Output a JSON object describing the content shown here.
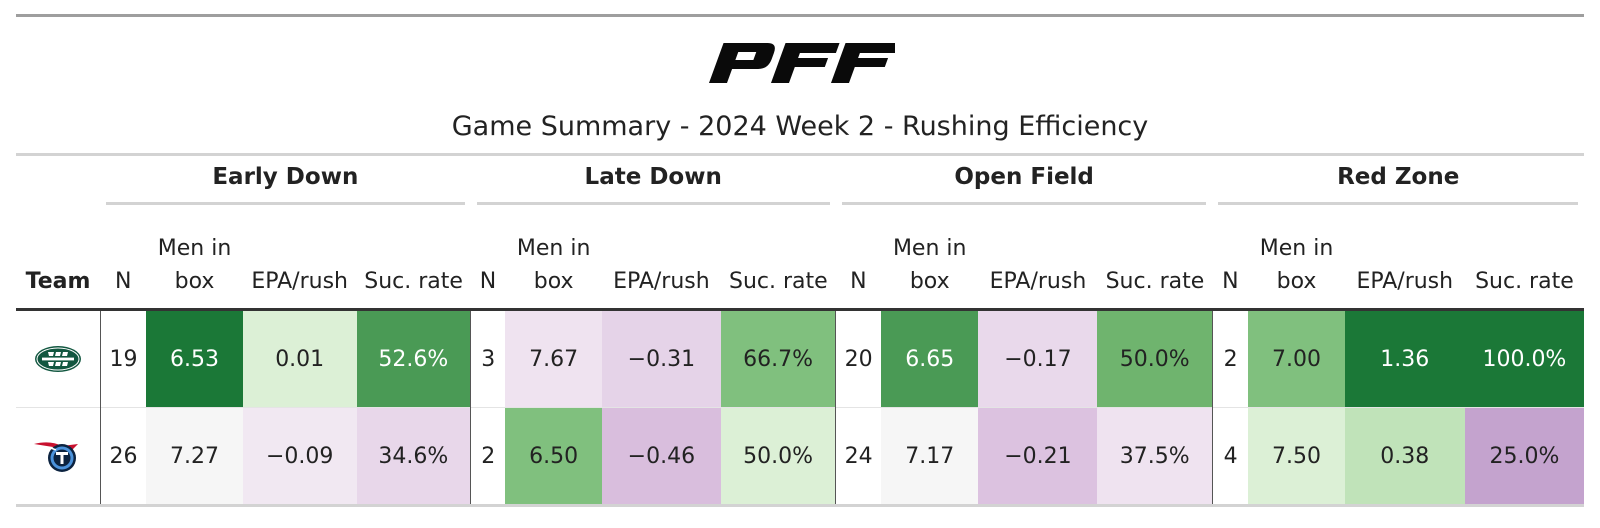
{
  "header": {
    "logo_text": "PFF",
    "title": "Game Summary - 2024 Week 2 - Rushing Efficiency"
  },
  "chart_data": {
    "type": "table",
    "title": "Game Summary - 2024 Week 2 - Rushing Efficiency",
    "team_header": "Team",
    "groups": [
      {
        "label": "Early Down",
        "columns": [
          "N",
          "Men in box",
          "EPA/rush",
          "Suc. rate"
        ]
      },
      {
        "label": "Late Down",
        "columns": [
          "N",
          "Men in box",
          "EPA/rush",
          "Suc. rate"
        ]
      },
      {
        "label": "Open Field",
        "columns": [
          "N",
          "Men in box",
          "EPA/rush",
          "Suc. rate"
        ]
      },
      {
        "label": "Red Zone",
        "columns": [
          "N",
          "Men in box",
          "EPA/rush",
          "Suc. rate"
        ]
      }
    ],
    "sub_labels": {
      "n": "N",
      "box_top": "Men in",
      "box_bottom": "box",
      "epa": "EPA/rush",
      "suc": "Suc. rate"
    },
    "rows": [
      {
        "team_logo": "jets-logo-icon",
        "cells": [
          {
            "text": "19",
            "bg": "#ffffff",
            "fg": "#222222"
          },
          {
            "text": "6.53",
            "bg": "#1b7837",
            "fg": "#ffffff"
          },
          {
            "text": "0.01",
            "bg": "#dcf0d6",
            "fg": "#222222"
          },
          {
            "text": "52.6%",
            "bg": "#4a9a55",
            "fg": "#ffffff"
          },
          {
            "text": "3",
            "bg": "#ffffff",
            "fg": "#222222"
          },
          {
            "text": "7.67",
            "bg": "#efe3f0",
            "fg": "#222222"
          },
          {
            "text": "−0.31",
            "bg": "#e5d3e8",
            "fg": "#222222"
          },
          {
            "text": "66.7%",
            "bg": "#80c07e",
            "fg": "#222222"
          },
          {
            "text": "20",
            "bg": "#ffffff",
            "fg": "#222222"
          },
          {
            "text": "6.65",
            "bg": "#4a9a55",
            "fg": "#ffffff"
          },
          {
            "text": "−0.17",
            "bg": "#e9d9eb",
            "fg": "#222222"
          },
          {
            "text": "50.0%",
            "bg": "#6fb46e",
            "fg": "#222222"
          },
          {
            "text": "2",
            "bg": "#ffffff",
            "fg": "#222222"
          },
          {
            "text": "7.00",
            "bg": "#80c07e",
            "fg": "#222222"
          },
          {
            "text": "1.36",
            "bg": "#1b7837",
            "fg": "#ffffff"
          },
          {
            "text": "100.0%",
            "bg": "#1b7837",
            "fg": "#ffffff"
          }
        ]
      },
      {
        "team_logo": "titans-logo-icon",
        "cells": [
          {
            "text": "26",
            "bg": "#ffffff",
            "fg": "#222222"
          },
          {
            "text": "7.27",
            "bg": "#f6f6f6",
            "fg": "#222222"
          },
          {
            "text": "−0.09",
            "bg": "#f1e8f2",
            "fg": "#222222"
          },
          {
            "text": "34.6%",
            "bg": "#e8d7ea",
            "fg": "#222222"
          },
          {
            "text": "2",
            "bg": "#ffffff",
            "fg": "#222222"
          },
          {
            "text": "6.50",
            "bg": "#80c07e",
            "fg": "#222222"
          },
          {
            "text": "−0.46",
            "bg": "#d9bedd",
            "fg": "#222222"
          },
          {
            "text": "50.0%",
            "bg": "#dcf0d6",
            "fg": "#222222"
          },
          {
            "text": "24",
            "bg": "#ffffff",
            "fg": "#222222"
          },
          {
            "text": "7.17",
            "bg": "#f6f6f6",
            "fg": "#222222"
          },
          {
            "text": "−0.21",
            "bg": "#dcc2e0",
            "fg": "#222222"
          },
          {
            "text": "37.5%",
            "bg": "#efe3f0",
            "fg": "#222222"
          },
          {
            "text": "4",
            "bg": "#ffffff",
            "fg": "#222222"
          },
          {
            "text": "7.50",
            "bg": "#dcf0d6",
            "fg": "#222222"
          },
          {
            "text": "0.38",
            "bg": "#c0e3b9",
            "fg": "#222222"
          },
          {
            "text": "25.0%",
            "bg": "#c4a3ce",
            "fg": "#222222"
          }
        ]
      }
    ]
  }
}
